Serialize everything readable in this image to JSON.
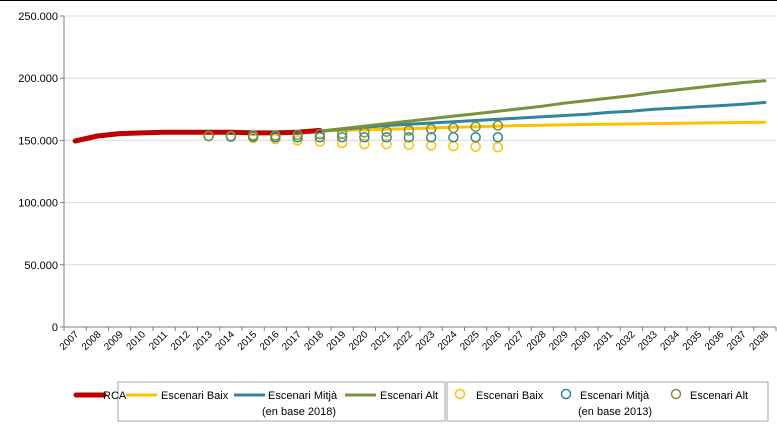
{
  "chart_data": {
    "type": "line",
    "title": "",
    "xlabel": "",
    "ylabel": "",
    "ylim": [
      0,
      250000
    ],
    "y_ticks": [
      0,
      50000,
      100000,
      150000,
      200000,
      250000
    ],
    "y_tick_labels": [
      "0",
      "50.000",
      "100.000",
      "150.000",
      "200.000",
      "250.000"
    ],
    "x_ticks": [
      2007,
      2008,
      2009,
      2010,
      2011,
      2012,
      2013,
      2014,
      2015,
      2016,
      2017,
      2018,
      2019,
      2020,
      2021,
      2022,
      2023,
      2024,
      2025,
      2026,
      2027,
      2028,
      2029,
      2030,
      2031,
      2032,
      2033,
      2034,
      2035,
      2036,
      2037,
      2038
    ],
    "grid": "horizontal",
    "legend_position": "bottom",
    "colors": {
      "rca": "#c00000",
      "baix": "#ffc000",
      "mitja": "#31849b",
      "alt": "#77933c"
    },
    "series": [
      {
        "name": "RCA",
        "style": "thick-line",
        "color": "#c00000",
        "x": [
          2007,
          2008,
          2009,
          2010,
          2011,
          2012,
          2013,
          2014,
          2015,
          2016,
          2017,
          2018
        ],
        "values": [
          149500,
          153500,
          155500,
          156000,
          156500,
          156500,
          156500,
          156500,
          156000,
          156000,
          156500,
          158000
        ]
      },
      {
        "name": "Escenari Baix",
        "group": "en base 2018",
        "style": "line",
        "color": "#ffc000",
        "x": [
          2018,
          2019,
          2020,
          2021,
          2022,
          2023,
          2024,
          2025,
          2026,
          2027,
          2028,
          2029,
          2030,
          2031,
          2032,
          2033,
          2034,
          2035,
          2036,
          2037,
          2038
        ],
        "values": [
          157500,
          158000,
          158500,
          159000,
          159500,
          160000,
          160500,
          161000,
          161500,
          162000,
          162200,
          162500,
          162800,
          163000,
          163200,
          163500,
          163700,
          164000,
          164200,
          164400,
          164600
        ]
      },
      {
        "name": "Escenari Mitjà",
        "group": "en base 2018",
        "style": "line",
        "color": "#31849b",
        "x": [
          2018,
          2019,
          2020,
          2021,
          2022,
          2023,
          2024,
          2025,
          2026,
          2027,
          2028,
          2029,
          2030,
          2031,
          2032,
          2033,
          2034,
          2035,
          2036,
          2037,
          2038
        ],
        "values": [
          157500,
          159000,
          160500,
          162000,
          163000,
          164000,
          165000,
          166000,
          167000,
          168000,
          169000,
          170000,
          171000,
          172500,
          173500,
          175000,
          176000,
          177000,
          178000,
          179000,
          180500
        ]
      },
      {
        "name": "Escenari Alt",
        "group": "en base 2018",
        "style": "line",
        "color": "#77933c",
        "x": [
          2018,
          2019,
          2020,
          2021,
          2022,
          2023,
          2024,
          2025,
          2026,
          2027,
          2028,
          2029,
          2030,
          2031,
          2032,
          2033,
          2034,
          2035,
          2036,
          2037,
          2038
        ],
        "values": [
          157500,
          159500,
          161500,
          163500,
          165500,
          167500,
          169500,
          171500,
          173500,
          175500,
          177500,
          180000,
          182000,
          184000,
          186000,
          188500,
          190500,
          192500,
          194500,
          196500,
          198000
        ]
      },
      {
        "name": "Escenari Baix",
        "group": "en base 2013",
        "style": "circles",
        "color": "#ffc000",
        "x": [
          2013,
          2014,
          2015,
          2016,
          2017,
          2018,
          2019,
          2020,
          2021,
          2022,
          2023,
          2024,
          2025,
          2026
        ],
        "values": [
          153500,
          153000,
          152000,
          151000,
          150000,
          149000,
          148000,
          147000,
          147000,
          146500,
          146000,
          145500,
          145000,
          144500
        ]
      },
      {
        "name": "Escenari Mitjà",
        "group": "en base 2013",
        "style": "circles",
        "color": "#31849b",
        "x": [
          2013,
          2014,
          2015,
          2016,
          2017,
          2018,
          2019,
          2020,
          2021,
          2022,
          2023,
          2024,
          2025,
          2026
        ],
        "values": [
          153500,
          153000,
          153000,
          152500,
          152500,
          152500,
          152500,
          152500,
          152500,
          152500,
          152500,
          152500,
          152500,
          152500
        ]
      },
      {
        "name": "Escenari Alt",
        "group": "en base 2013",
        "style": "circles",
        "color": "#77933c",
        "x": [
          2013,
          2014,
          2015,
          2016,
          2017,
          2018,
          2019,
          2020,
          2021,
          2022,
          2023,
          2024,
          2025,
          2026
        ],
        "values": [
          153500,
          153500,
          154000,
          154000,
          154500,
          155000,
          155500,
          156500,
          157000,
          158000,
          159000,
          160000,
          161000,
          162000
        ]
      }
    ]
  },
  "legend": {
    "rca": "RCA",
    "group1": {
      "items": [
        "Escenari Baix",
        "Escenari Mitjà",
        "Escenari Alt"
      ],
      "caption": "(en base 2018)"
    },
    "group2": {
      "items": [
        "Escenari Baix",
        "Escenari Mitjà",
        "Escenari Alt"
      ],
      "caption": "(en base 2013)"
    }
  }
}
